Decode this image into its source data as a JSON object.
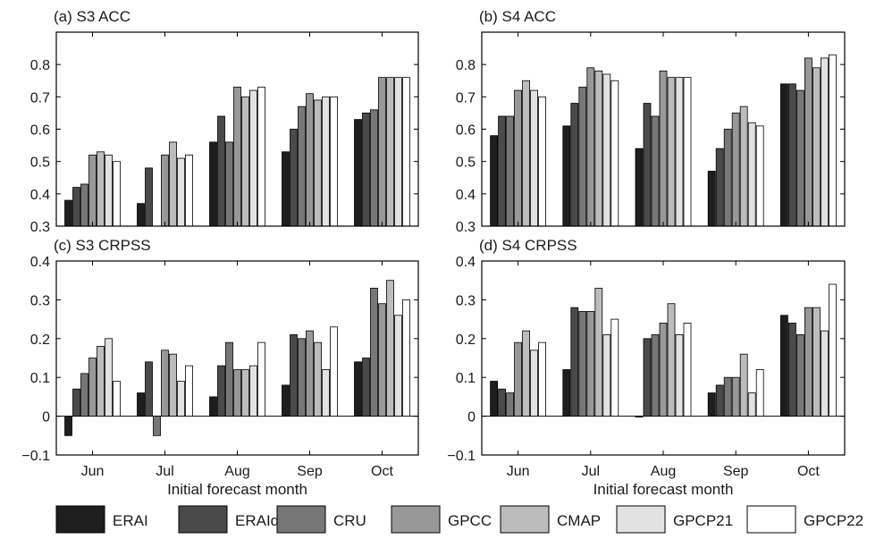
{
  "categories": [
    "Jun",
    "Jul",
    "Aug",
    "Sep",
    "Oct"
  ],
  "xlabel": "Initial forecast month",
  "legend": [
    {
      "name": "ERAI",
      "color": "#1e1e1e"
    },
    {
      "name": "ERAId",
      "color": "#4a4a4a"
    },
    {
      "name": "CRU",
      "color": "#777777"
    },
    {
      "name": "GPCC",
      "color": "#989898"
    },
    {
      "name": "CMAP",
      "color": "#bcbcbc"
    },
    {
      "name": "GPCP21",
      "color": "#e2e2e2"
    },
    {
      "name": "GPCP22",
      "color": "#ffffff"
    }
  ],
  "chart_data": [
    {
      "type": "bar",
      "title": "(a) S3 ACC",
      "xlabel": "",
      "ylim": [
        0.3,
        0.9
      ],
      "yticks": [
        "0.3",
        "0.4",
        "0.5",
        "0.6",
        "0.7",
        "0.8"
      ],
      "categories": [
        "Jun",
        "Jul",
        "Aug",
        "Sep",
        "Oct"
      ],
      "series": [
        {
          "name": "ERAI",
          "values": [
            0.38,
            0.37,
            0.56,
            0.53,
            0.63
          ]
        },
        {
          "name": "ERAId",
          "values": [
            0.42,
            0.48,
            0.64,
            0.6,
            0.65
          ]
        },
        {
          "name": "CRU",
          "values": [
            0.43,
            null,
            0.56,
            0.67,
            0.66
          ]
        },
        {
          "name": "GPCC",
          "values": [
            0.52,
            0.52,
            0.73,
            0.71,
            0.76
          ]
        },
        {
          "name": "CMAP",
          "values": [
            0.53,
            0.56,
            0.7,
            0.69,
            0.76
          ]
        },
        {
          "name": "GPCP21",
          "values": [
            0.52,
            0.51,
            0.72,
            0.7,
            0.76
          ]
        },
        {
          "name": "GPCP22",
          "values": [
            0.5,
            0.52,
            0.73,
            0.7,
            0.76
          ]
        }
      ]
    },
    {
      "type": "bar",
      "title": "(b) S4 ACC",
      "xlabel": "",
      "ylim": [
        0.3,
        0.9
      ],
      "yticks": [
        "0.3",
        "0.4",
        "0.5",
        "0.6",
        "0.7",
        "0.8"
      ],
      "categories": [
        "Jun",
        "Jul",
        "Aug",
        "Sep",
        "Oct"
      ],
      "series": [
        {
          "name": "ERAI",
          "values": [
            0.58,
            0.61,
            0.54,
            0.47,
            0.74
          ]
        },
        {
          "name": "ERAId",
          "values": [
            0.64,
            0.68,
            0.68,
            0.54,
            0.74
          ]
        },
        {
          "name": "CRU",
          "values": [
            0.64,
            0.73,
            0.64,
            0.6,
            0.72
          ]
        },
        {
          "name": "GPCC",
          "values": [
            0.72,
            0.79,
            0.78,
            0.65,
            0.82
          ]
        },
        {
          "name": "CMAP",
          "values": [
            0.75,
            0.78,
            0.76,
            0.67,
            0.79
          ]
        },
        {
          "name": "GPCP21",
          "values": [
            0.72,
            0.77,
            0.76,
            0.62,
            0.82
          ]
        },
        {
          "name": "GPCP22",
          "values": [
            0.7,
            0.75,
            0.76,
            0.61,
            0.83
          ]
        }
      ]
    },
    {
      "type": "bar",
      "title": "(c) S3 CRPSS",
      "xlabel": "Initial forecast month",
      "ylim": [
        -0.1,
        0.4
      ],
      "yticks": [
        "−0.1",
        "0",
        "0.1",
        "0.2",
        "0.3",
        "0.4"
      ],
      "categories": [
        "Jun",
        "Jul",
        "Aug",
        "Sep",
        "Oct"
      ],
      "series": [
        {
          "name": "ERAI",
          "values": [
            -0.05,
            0.06,
            0.05,
            0.08,
            0.14
          ]
        },
        {
          "name": "ERAId",
          "values": [
            0.07,
            0.14,
            0.13,
            0.21,
            0.15
          ]
        },
        {
          "name": "CRU",
          "values": [
            0.11,
            -0.05,
            0.19,
            0.2,
            0.33
          ]
        },
        {
          "name": "GPCC",
          "values": [
            0.15,
            0.17,
            0.12,
            0.22,
            0.29
          ]
        },
        {
          "name": "CMAP",
          "values": [
            0.18,
            0.16,
            0.12,
            0.19,
            0.35
          ]
        },
        {
          "name": "GPCP21",
          "values": [
            0.2,
            0.09,
            0.13,
            0.12,
            0.26
          ]
        },
        {
          "name": "GPCP22",
          "values": [
            0.09,
            0.13,
            0.19,
            0.23,
            0.3
          ]
        }
      ]
    },
    {
      "type": "bar",
      "title": "(d) S4 CRPSS",
      "xlabel": "Initial forecast month",
      "ylim": [
        -0.1,
        0.4
      ],
      "yticks": [
        "−0.1",
        "0",
        "0.1",
        "0.2",
        "0.3",
        "0.4"
      ],
      "categories": [
        "Jun",
        "Jul",
        "Aug",
        "Sep",
        "Oct"
      ],
      "series": [
        {
          "name": "ERAI",
          "values": [
            0.09,
            0.12,
            0.0,
            0.06,
            0.26
          ]
        },
        {
          "name": "ERAId",
          "values": [
            0.07,
            0.28,
            0.2,
            0.08,
            0.24
          ]
        },
        {
          "name": "CRU",
          "values": [
            0.06,
            0.27,
            0.21,
            0.1,
            0.21
          ]
        },
        {
          "name": "GPCC",
          "values": [
            0.19,
            0.27,
            0.24,
            0.1,
            0.28
          ]
        },
        {
          "name": "CMAP",
          "values": [
            0.22,
            0.33,
            0.29,
            0.16,
            0.28
          ]
        },
        {
          "name": "GPCP21",
          "values": [
            0.17,
            0.21,
            0.21,
            0.06,
            0.22
          ]
        },
        {
          "name": "GPCP22",
          "values": [
            0.19,
            0.25,
            0.24,
            0.12,
            0.34
          ]
        }
      ]
    }
  ]
}
